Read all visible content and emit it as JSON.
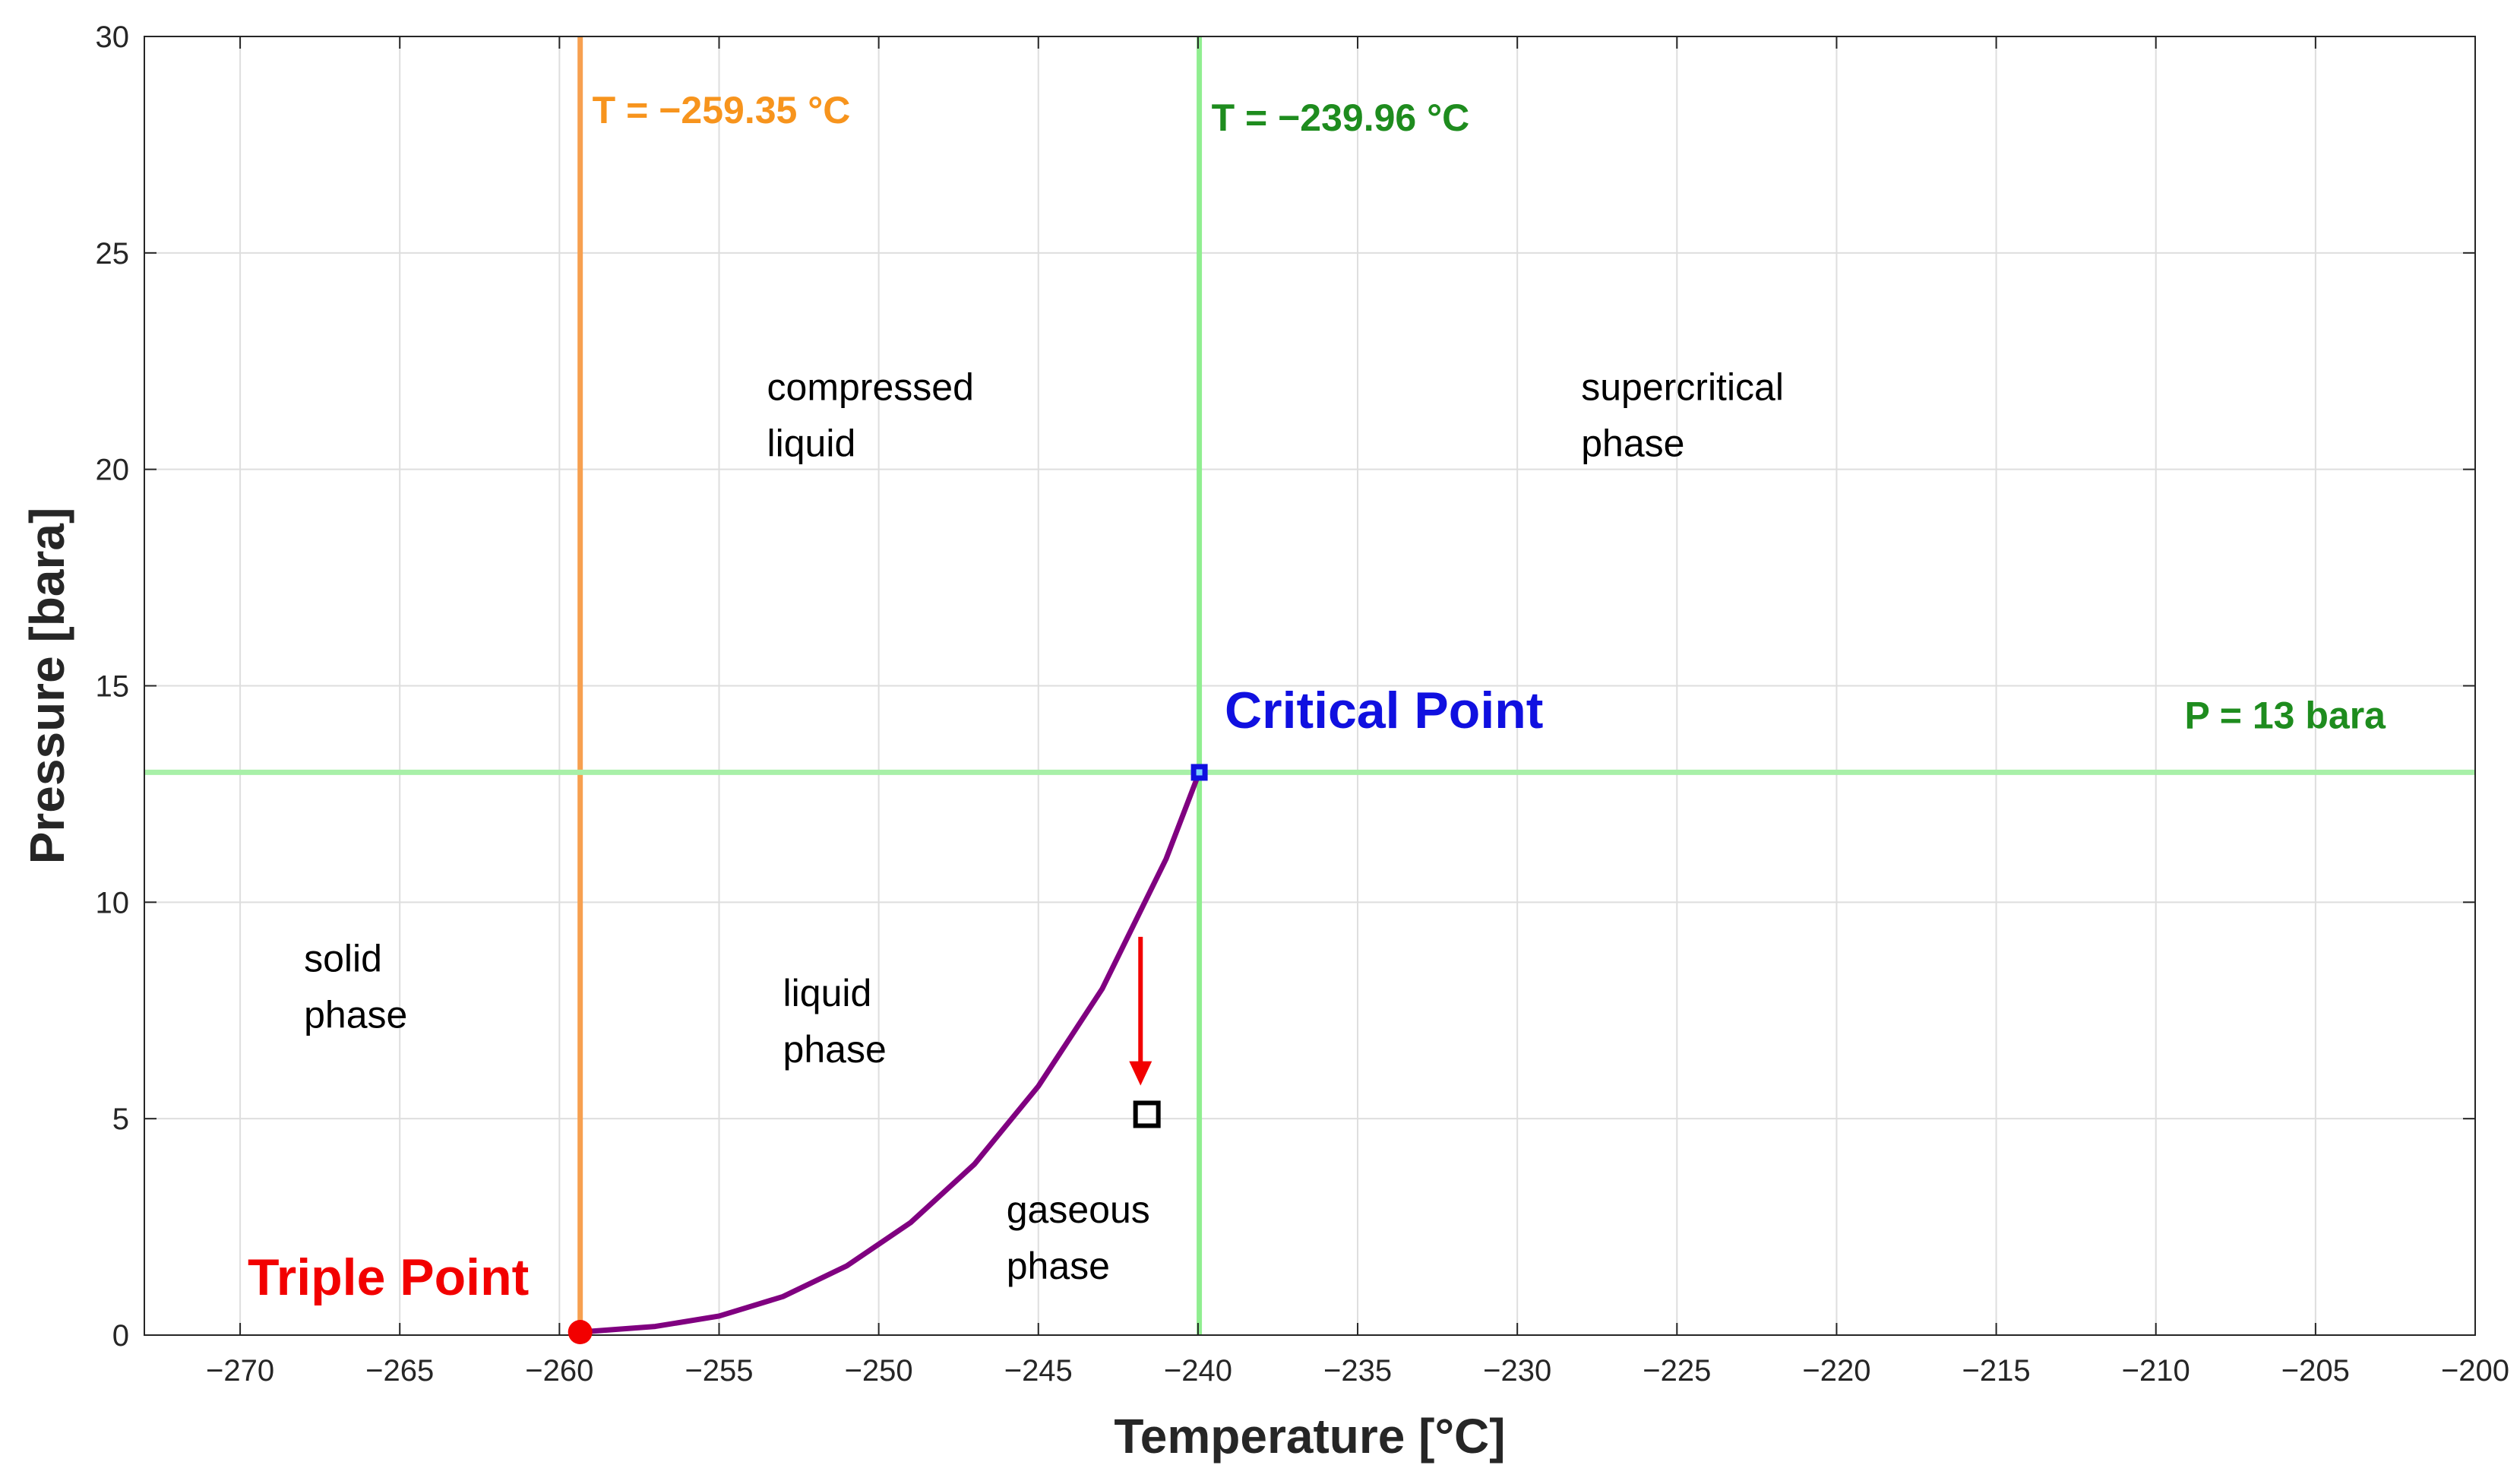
{
  "chart_data": {
    "type": "line",
    "title": "",
    "xlabel": "Temperature [°C]",
    "ylabel": "Pressure [bara]",
    "xlim": [
      -273,
      -200
    ],
    "ylim": [
      0,
      30
    ],
    "grid": true,
    "x_ticks": [
      -270,
      -265,
      -260,
      -255,
      -250,
      -245,
      -240,
      -235,
      -230,
      -225,
      -220,
      -215,
      -210,
      -205,
      -200
    ],
    "x_tick_labels": [
      "−270",
      "−265",
      "−260",
      "−255",
      "−250",
      "−245",
      "−240",
      "−235",
      "−230",
      "−225",
      "−220",
      "−215",
      "−210",
      "−205",
      "−200"
    ],
    "y_ticks": [
      0,
      5,
      10,
      15,
      20,
      25,
      30
    ],
    "y_tick_labels": [
      "0",
      "5",
      "10",
      "15",
      "20",
      "25",
      "30"
    ],
    "series": [
      {
        "name": "vapor-pressure-curve",
        "color": "#800080",
        "x": [
          -259.35,
          -257,
          -255,
          -253,
          -251,
          -249,
          -247,
          -245,
          -243,
          -241,
          -239.96
        ],
        "y": [
          0.07,
          0.2,
          0.44,
          0.89,
          1.6,
          2.6,
          3.95,
          5.75,
          8.0,
          11.0,
          13.0
        ]
      }
    ],
    "reference_lines": [
      {
        "orientation": "vertical",
        "value": -259.35,
        "color": "#F7A050",
        "label": "T = −259.35 °C",
        "label_color": "#F7941D"
      },
      {
        "orientation": "vertical",
        "value": -239.96,
        "color": "#90EE90",
        "label": "T = −239.96 °C",
        "label_color": "#1E8C1E"
      },
      {
        "orientation": "horizontal",
        "value": 13,
        "color": "#A8F0A8",
        "label": "P = 13 bara",
        "label_color": "#1E8C1E"
      }
    ],
    "points": [
      {
        "name": "Triple Point",
        "x": -259.35,
        "y": 0.07,
        "color": "#F20000",
        "marker": "circle",
        "label": "Triple Point"
      },
      {
        "name": "Critical Point",
        "x": -239.96,
        "y": 13,
        "color": "#1010E0",
        "marker": "square",
        "label": "Critical Point"
      },
      {
        "name": "State Point",
        "x": -241.6,
        "y": 5.1,
        "color": "#000000",
        "marker": "open-square"
      }
    ],
    "arrow": {
      "color": "#F20000",
      "from": {
        "x": -241.8,
        "y": 9.2
      },
      "to": {
        "x": -241.8,
        "y": 5.8
      }
    },
    "region_labels": [
      {
        "name": "compressed-liquid",
        "lines": [
          "compressed",
          "liquid"
        ],
        "x": -253.5,
        "y": 21.6
      },
      {
        "name": "supercritical-phase",
        "lines": [
          "supercritical",
          "phase"
        ],
        "x": -228,
        "y": 21.6
      },
      {
        "name": "solid-phase",
        "lines": [
          "solid",
          "phase"
        ],
        "x": -268,
        "y": 8.4
      },
      {
        "name": "liquid-phase",
        "lines": [
          "liquid",
          "phase"
        ],
        "x": -253,
        "y": 7.6
      },
      {
        "name": "gaseous-phase",
        "lines": [
          "gaseous",
          "phase"
        ],
        "x": -246,
        "y": 2.6
      }
    ]
  }
}
